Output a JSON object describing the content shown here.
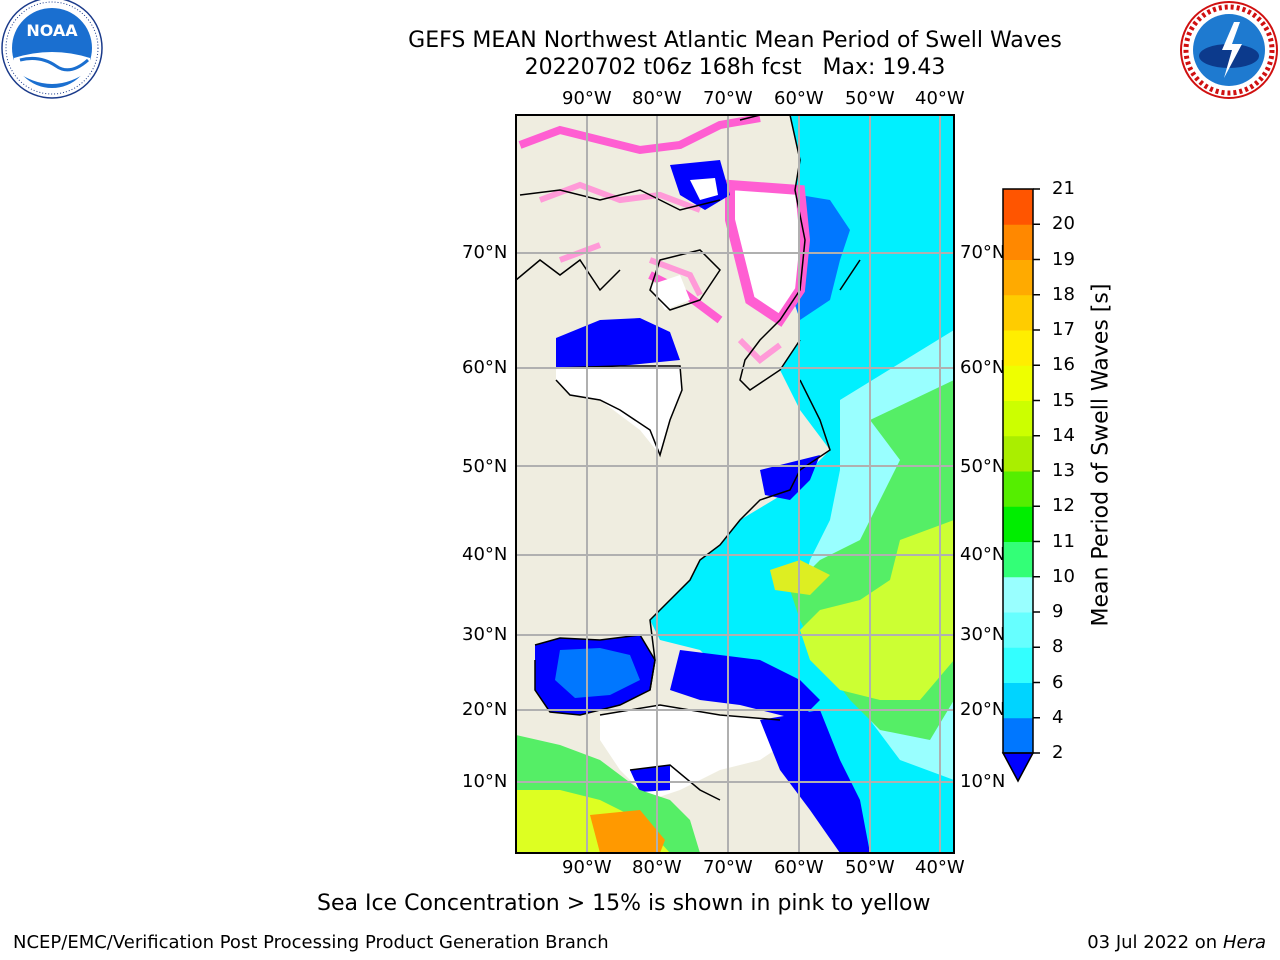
{
  "header": {
    "title_line1": "GEFS MEAN Northwest Atlantic Mean Period of Swell Waves",
    "title_line2": "20220702 t06z 168h fcst   Max: 19.43"
  },
  "logos": {
    "left": {
      "name": "noaa-logo",
      "text": "NOAA",
      "ring_text": "NATIONAL OCEANIC AND ATMOSPHERIC ADMINISTRATION · U.S. DEPARTMENT OF COMMERCE"
    },
    "right": {
      "name": "nws-logo",
      "ring_text": "NATIONAL WEATHER SERVICE"
    }
  },
  "map": {
    "lon_labels": [
      "90°W",
      "80°W",
      "70°W",
      "60°W",
      "50°W",
      "40°W"
    ],
    "lat_labels": [
      "70°N",
      "60°N",
      "50°N",
      "40°N",
      "30°N",
      "20°N",
      "10°N"
    ],
    "colors": {
      "land": "#efede0",
      "ocean_low": "#0000ff",
      "ocean": "#00f0ff",
      "ice": "#ff5ed2",
      "grid": "#b0b0b0"
    }
  },
  "colorbar": {
    "title": "Mean Period of Swell Waves [s]",
    "ticks": [
      "2",
      "4",
      "6",
      "8",
      "9",
      "10",
      "11",
      "12",
      "13",
      "14",
      "15",
      "16",
      "17",
      "18",
      "19",
      "20",
      "21"
    ],
    "colors": [
      "#0077ff",
      "#00d4ff",
      "#33ffff",
      "#66ffff",
      "#99ffff",
      "#33ff77",
      "#00ee00",
      "#55ee00",
      "#aaee00",
      "#ccff00",
      "#eeff00",
      "#ffee00",
      "#ffcc00",
      "#ffaa00",
      "#ff8800",
      "#ff5500",
      "#ff2200",
      "#ff0000"
    ],
    "under_color": "#0000ff"
  },
  "caption": "Sea Ice Concentration > 15% is shown in pink to yellow",
  "footer": {
    "left": "NCEP/EMC/Verification Post Processing Product Generation Branch",
    "date": "03 Jul 2022 on ",
    "machine": "Hera"
  }
}
